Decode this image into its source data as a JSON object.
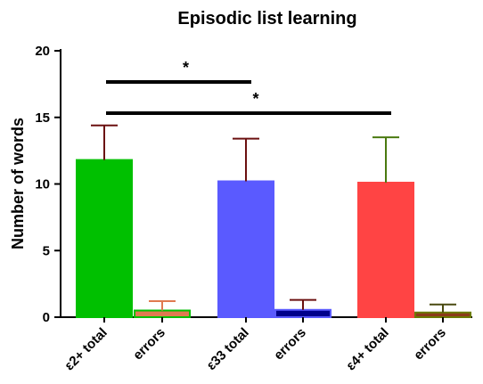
{
  "chart_data": {
    "type": "bar",
    "title": "Episodic list learning",
    "xlabel": "",
    "ylabel": "Number of words",
    "ylim": [
      0,
      20
    ],
    "yticks": [
      "0",
      "5",
      "10",
      "15",
      "20"
    ],
    "categories": [
      "ε2+ total",
      "errors",
      "ε33 total",
      "errors",
      "ε4+ total",
      "errors"
    ],
    "values": [
      11.8,
      0.5,
      10.2,
      0.55,
      10.1,
      0.35
    ],
    "error_upper": [
      14.4,
      1.2,
      13.4,
      1.3,
      13.5,
      0.95
    ],
    "bar_colors": [
      "#00c000",
      "#e07a50",
      "#5a5aff",
      "#00008b",
      "#ff4444",
      "#8b3a1a"
    ],
    "bar_edge_colors": [
      "#00c000",
      "#00c000",
      "#5a5aff",
      "#5a5aff",
      "#ff4444",
      "#6b7a00"
    ],
    "error_colors": [
      "#6b1010",
      "#e07a50",
      "#6b1010",
      "#6b1010",
      "#4a7a10",
      "#4a4a10"
    ],
    "significance": [
      {
        "from": 0,
        "to": 2,
        "label": "*"
      },
      {
        "from": 0,
        "to": 4,
        "label": "*"
      }
    ]
  }
}
